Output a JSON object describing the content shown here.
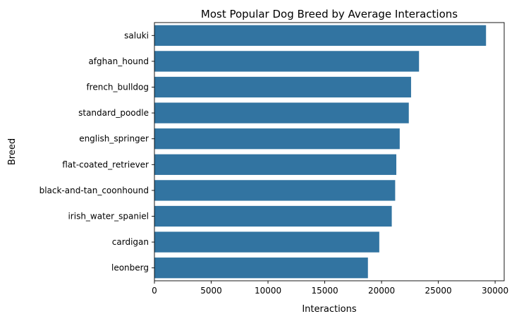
{
  "chart_data": {
    "type": "bar",
    "orientation": "horizontal",
    "title": "Most Popular Dog Breed by Average Interactions",
    "xlabel": "Interactions",
    "ylabel": "Breed",
    "categories": [
      "saluki",
      "afghan_hound",
      "french_bulldog",
      "standard_poodle",
      "english_springer",
      "flat-coated_retriever",
      "black-and-tan_coonhound",
      "irish_water_spaniel",
      "cardigan",
      "leonberg"
    ],
    "values": [
      29200,
      23300,
      22600,
      22400,
      21600,
      21300,
      21200,
      20900,
      19800,
      18800
    ],
    "xlim": [
      0,
      30800
    ],
    "xticks": [
      0,
      5000,
      10000,
      15000,
      20000,
      25000,
      30000
    ],
    "xtick_labels": [
      "0",
      "5000",
      "10000",
      "15000",
      "20000",
      "25000",
      "30000"
    ],
    "bar_color": "#3274a1",
    "grid": false
  }
}
